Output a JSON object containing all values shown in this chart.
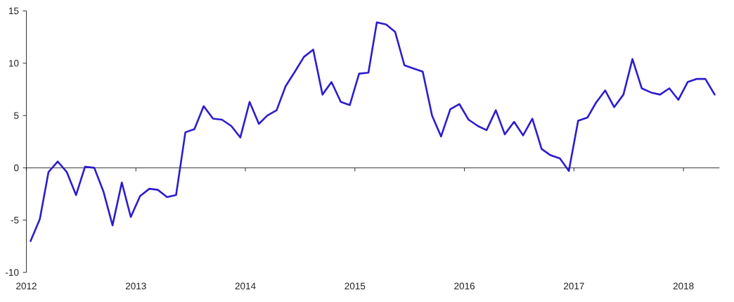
{
  "chart_data": {
    "type": "line",
    "x": [
      "2012-01-15",
      "2012-02-15",
      "2012-03-15",
      "2012-04-15",
      "2012-05-15",
      "2012-06-15",
      "2012-07-15",
      "2012-08-15",
      "2012-09-15",
      "2012-10-15",
      "2012-11-15",
      "2012-12-15",
      "2013-01-15",
      "2013-02-15",
      "2013-03-15",
      "2013-04-15",
      "2013-05-15",
      "2013-06-15",
      "2013-07-15",
      "2013-08-15",
      "2013-09-15",
      "2013-10-15",
      "2013-11-15",
      "2013-12-15",
      "2014-01-15",
      "2014-02-15",
      "2014-03-15",
      "2014-04-15",
      "2014-05-15",
      "2014-06-15",
      "2014-07-15",
      "2014-08-15",
      "2014-09-15",
      "2014-10-15",
      "2014-11-15",
      "2014-12-15",
      "2015-01-15",
      "2015-02-15",
      "2015-03-15",
      "2015-04-15",
      "2015-05-15",
      "2015-06-15",
      "2015-07-15",
      "2015-08-15",
      "2015-09-15",
      "2015-10-15",
      "2015-11-15",
      "2015-12-15",
      "2016-01-15",
      "2016-02-15",
      "2016-03-15",
      "2016-04-15",
      "2016-05-15",
      "2016-06-15",
      "2016-07-15",
      "2016-08-15",
      "2016-09-15",
      "2016-10-15",
      "2016-11-15",
      "2016-12-15",
      "2017-01-15",
      "2017-02-15",
      "2017-03-15",
      "2017-04-15",
      "2017-05-15",
      "2017-06-15",
      "2017-07-15",
      "2017-08-15",
      "2017-09-15",
      "2017-10-15",
      "2017-11-15",
      "2017-12-15",
      "2018-01-15",
      "2018-02-15",
      "2018-03-15",
      "2018-04-15"
    ],
    "series": [
      {
        "color": "#2d1ccf",
        "values": [
          -7.0,
          -4.9,
          -0.4,
          0.6,
          -0.4,
          -2.6,
          0.1,
          0.0,
          -2.3,
          -5.5,
          -1.4,
          -4.7,
          -2.7,
          -2.0,
          -2.1,
          -2.8,
          -2.6,
          3.4,
          3.7,
          5.9,
          4.7,
          4.6,
          4.0,
          2.9,
          6.3,
          4.2,
          5.0,
          5.5,
          7.8,
          9.2,
          10.6,
          11.3,
          7.0,
          8.2,
          6.3,
          6.0,
          9.0,
          9.1,
          13.9,
          13.7,
          13.0,
          9.8,
          9.5,
          9.2,
          5.0,
          3.0,
          5.6,
          6.1,
          4.6,
          4.0,
          3.6,
          5.5,
          3.2,
          4.4,
          3.1,
          4.7,
          1.8,
          1.2,
          0.9,
          -0.3,
          4.5,
          4.8,
          6.2,
          7.4,
          5.8,
          7.0,
          10.4,
          7.6,
          7.2,
          7.0,
          7.6,
          6.5,
          8.2,
          8.5,
          8.5,
          7.0
        ]
      }
    ],
    "xlim": [
      "2012-01-01",
      "2018-05-01"
    ],
    "xticks": [
      "2012",
      "2013",
      "2014",
      "2015",
      "2016",
      "2017",
      "2018"
    ],
    "ylim": [
      -10,
      15
    ],
    "yticks": [
      -10,
      -5,
      0,
      5,
      10,
      15
    ],
    "line_style": "solid"
  }
}
